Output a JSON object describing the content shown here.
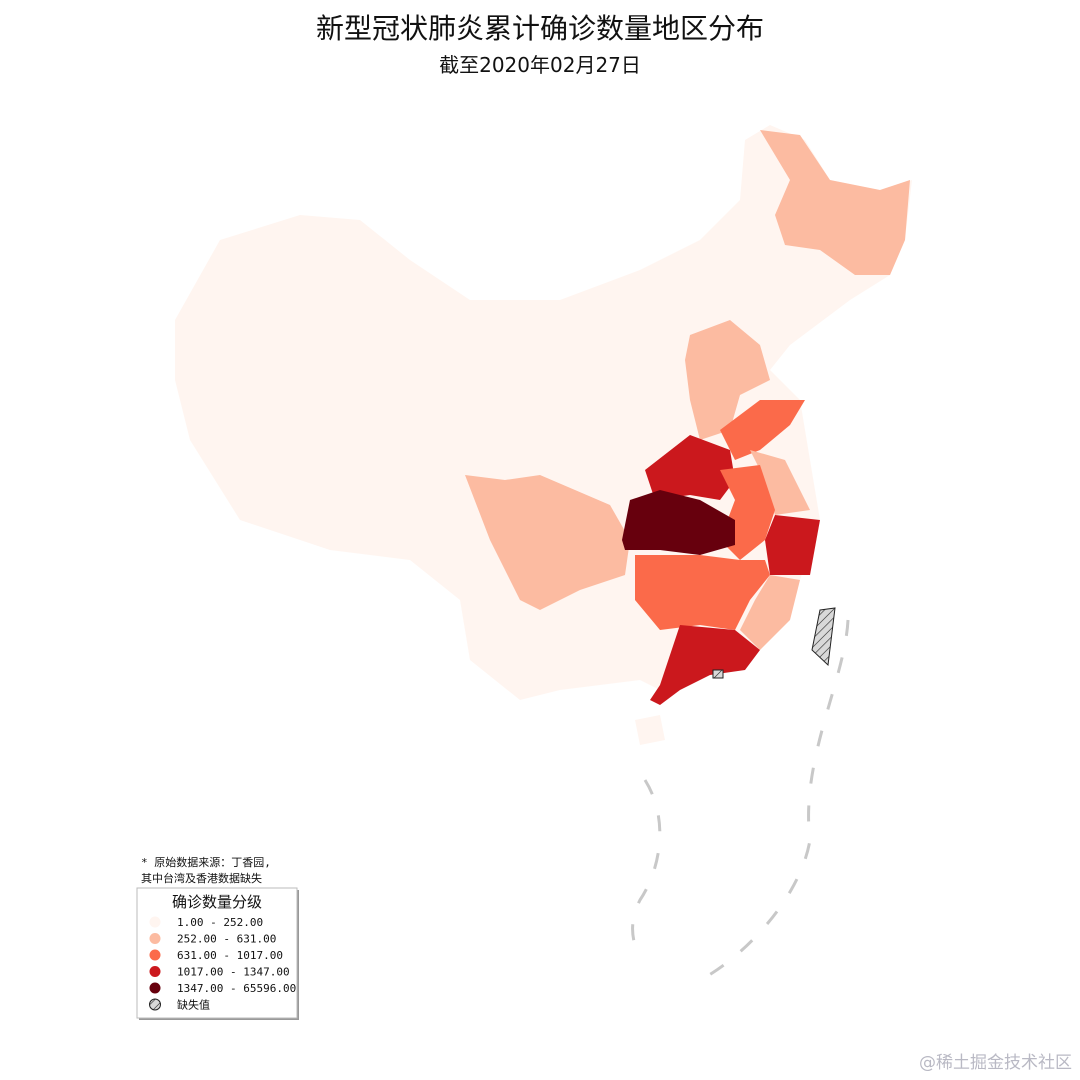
{
  "title": "新型冠状肺炎累计确诊数量地区分布",
  "subtitle": "截至2020年02月27日",
  "note": [
    "* 原始数据来源：丁香园,",
    "其中台湾及香港数据缺失"
  ],
  "legend": {
    "title": "确诊数量分级",
    "items": [
      {
        "label": "1.00 - 252.00",
        "color": "#fff5f0"
      },
      {
        "label": "252.00 - 631.00",
        "color": "#fcbba1"
      },
      {
        "label": "631.00 - 1017.00",
        "color": "#fb6a4a"
      },
      {
        "label": "1017.00 - 1347.00",
        "color": "#cb181d"
      },
      {
        "label": "1347.00 - 65596.00",
        "color": "#67000d"
      },
      {
        "label": "缺失值",
        "color": "#d9d9d9"
      }
    ]
  },
  "watermark": "@稀土掘金技术社区"
}
